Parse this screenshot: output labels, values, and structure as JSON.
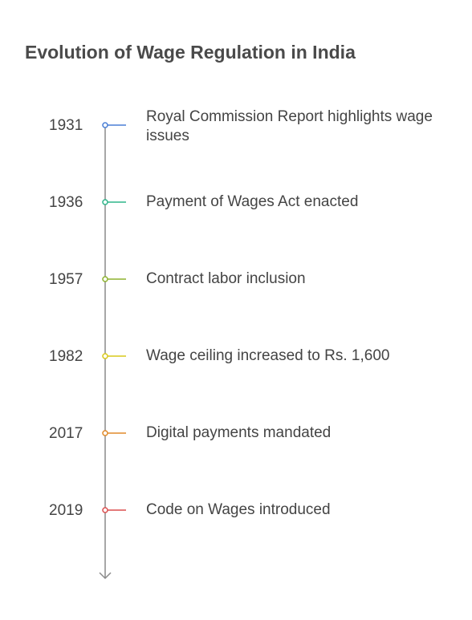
{
  "title": "Evolution of Wage Regulation in India",
  "events": [
    {
      "year": "1931",
      "text": "Royal Commission Report highlights wage issues",
      "color": "#4a7fd6"
    },
    {
      "year": "1936",
      "text": "Payment of Wages Act enacted",
      "color": "#2fb58a"
    },
    {
      "year": "1957",
      "text": "Contract labor inclusion",
      "color": "#8db22e"
    },
    {
      "year": "1982",
      "text": "Wage ceiling increased to Rs. 1,600",
      "color": "#d9c91a"
    },
    {
      "year": "2017",
      "text": "Digital payments mandated",
      "color": "#e08a2a"
    },
    {
      "year": "2019",
      "text": "Code on Wages introduced",
      "color": "#db4f4f"
    }
  ],
  "axis_color": "#8a8a8a"
}
